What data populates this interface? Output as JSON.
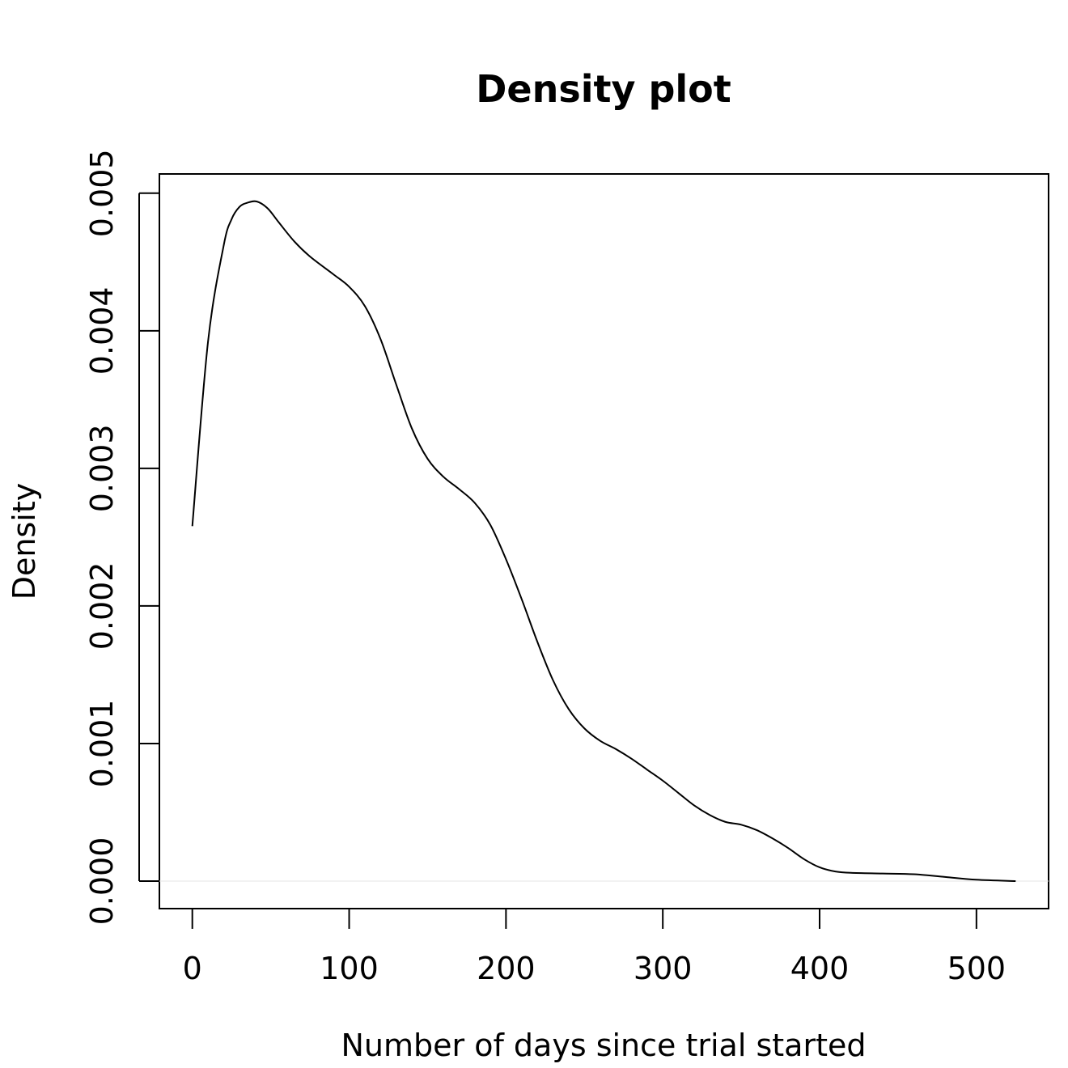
{
  "chart_data": {
    "type": "line",
    "title": "Density plot",
    "xlabel": "Number of days since trial started",
    "ylabel": "Density",
    "xlim": [
      -21,
      546
    ],
    "ylim": [
      -0.0002,
      0.00514
    ],
    "x_ticks": [
      0,
      100,
      200,
      300,
      400,
      500
    ],
    "x_tick_labels": [
      "0",
      "100",
      "200",
      "300",
      "400",
      "500"
    ],
    "y_ticks": [
      0.0,
      0.001,
      0.002,
      0.003,
      0.004,
      0.005
    ],
    "y_tick_labels": [
      "0.000",
      "0.001",
      "0.002",
      "0.003",
      "0.004",
      "0.005"
    ],
    "grid": false,
    "legend": "none",
    "series": [
      {
        "x": [
          0,
          10,
          20,
          25,
          30,
          35,
          41,
          48,
          55,
          65,
          75,
          90,
          100,
          110,
          120,
          130,
          140,
          150,
          160,
          170,
          180,
          190,
          200,
          210,
          220,
          230,
          240,
          250,
          260,
          270,
          280,
          290,
          300,
          310,
          320,
          330,
          340,
          350,
          360,
          370,
          380,
          390,
          400,
          410,
          420,
          440,
          460,
          480,
          500,
          525
        ],
        "y": [
          0.00258,
          0.00392,
          0.00462,
          0.00481,
          0.0049,
          0.00493,
          0.00494,
          0.00489,
          0.00479,
          0.00465,
          0.00454,
          0.00441,
          0.00432,
          0.00418,
          0.00394,
          0.00361,
          0.00329,
          0.00307,
          0.00294,
          0.00285,
          0.00275,
          0.00259,
          0.00234,
          0.00205,
          0.00174,
          0.00146,
          0.00125,
          0.00111,
          0.00102,
          0.00096,
          0.00089,
          0.00081,
          0.00073,
          0.00064,
          0.00055,
          0.00048,
          0.00043,
          0.00041,
          0.00037,
          0.00031,
          0.00024,
          0.00016,
          0.0001,
          7e-05,
          6e-05,
          5.5e-05,
          5e-05,
          3e-05,
          1e-05,
          0.0
        ]
      }
    ]
  }
}
